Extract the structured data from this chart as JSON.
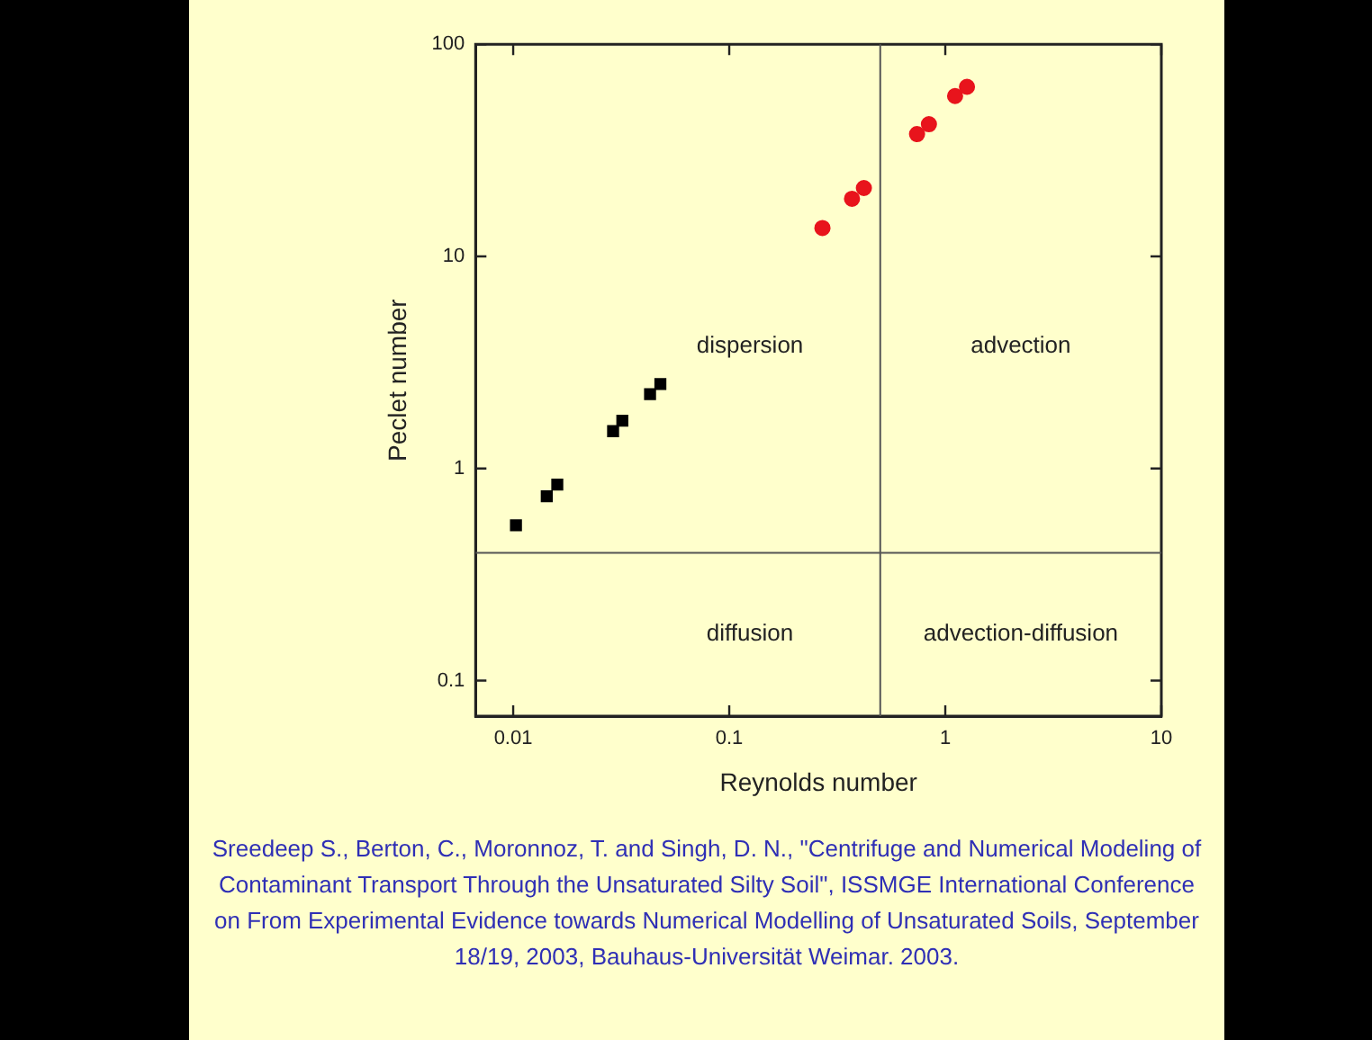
{
  "chart_data": {
    "type": "scatter",
    "xlabel": "Reynolds number",
    "ylabel": "Peclet number",
    "log": "xy",
    "xlim": [
      0.0067,
      10
    ],
    "ylim": [
      0.068,
      100
    ],
    "xticks": [
      0.01,
      0.1,
      1,
      10
    ],
    "yticks": [
      0.1,
      1,
      10,
      100
    ],
    "grid": false,
    "legend": false,
    "series": [
      {
        "marker": "square",
        "color": "#000000",
        "x": [
          0.0103,
          0.0143,
          0.016,
          0.029,
          0.032,
          0.043,
          0.048
        ],
        "values": [
          0.54,
          0.74,
          0.84,
          1.5,
          1.68,
          2.24,
          2.5
        ]
      },
      {
        "marker": "circle",
        "color": "#e8141c",
        "x": [
          0.27,
          0.37,
          0.42,
          0.74,
          0.84,
          1.11,
          1.26
        ],
        "values": [
          13.6,
          18.7,
          21,
          37.7,
          42,
          57,
          63
        ]
      }
    ],
    "ref_lines": [
      {
        "axis": "x",
        "value": 0.5
      },
      {
        "axis": "y",
        "value": 0.4
      }
    ],
    "annotations": [
      "dispersion",
      "advection",
      "diffusion",
      "advection-diffusion",
      "Sreedeep S., Berton, C., Moronnoz, T. and Singh, D. N., \"Centrifuge and Numerical Modeling of Contaminant Transport Through the Unsaturated Silty Soil\", ISSMGE International Conference on From Experimental Evidence towards Numerical Modelling of Unsaturated Soils, September 18/19, 2003, Bauhaus-Universität Weimar. 2003."
    ]
  }
}
